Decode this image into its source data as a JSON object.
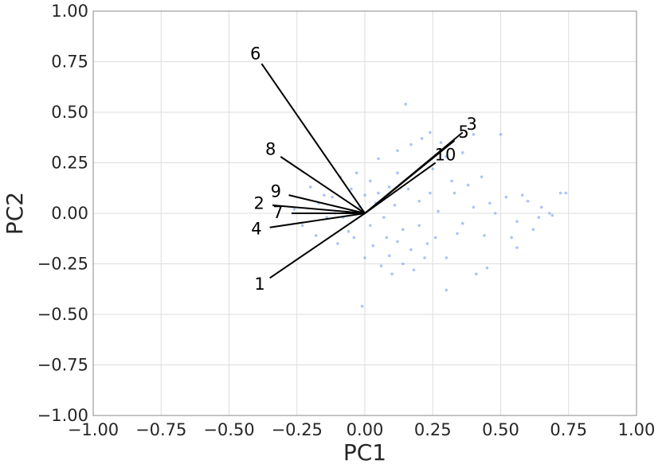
{
  "chart_data": {
    "type": "scatter",
    "title": "",
    "xlabel": "PC1",
    "ylabel": "PC2",
    "xlim": [
      -1.0,
      1.0
    ],
    "ylim": [
      -1.0,
      1.0
    ],
    "xticks": [
      -1.0,
      -0.75,
      -0.5,
      -0.25,
      0.0,
      0.25,
      0.5,
      0.75,
      1.0
    ],
    "yticks": [
      -1.0,
      -0.75,
      -0.5,
      -0.25,
      0.0,
      0.25,
      0.5,
      0.75,
      1.0
    ],
    "xtick_labels": [
      "−1.00",
      "−0.75",
      "−0.50",
      "−0.25",
      "0.00",
      "0.25",
      "0.50",
      "0.75",
      "1.00"
    ],
    "ytick_labels": [
      "−1.00",
      "−0.75",
      "−0.50",
      "−0.25",
      "0.00",
      "0.25",
      "0.50",
      "0.75",
      "1.00"
    ],
    "grid": true,
    "colors": {
      "points": "#6495ED",
      "vectors": "#000000",
      "grid": "#dddddd",
      "frame": "#888888"
    },
    "loadings": [
      {
        "label": "1",
        "x": -0.35,
        "y": -0.32
      },
      {
        "label": "2",
        "x": -0.34,
        "y": 0.04
      },
      {
        "label": "3",
        "x": 0.36,
        "y": 0.4
      },
      {
        "label": "4",
        "x": -0.35,
        "y": -0.07
      },
      {
        "label": "5",
        "x": 0.33,
        "y": 0.36
      },
      {
        "label": "6",
        "x": -0.38,
        "y": 0.74
      },
      {
        "label": "7",
        "x": -0.27,
        "y": 0.0
      },
      {
        "label": "8",
        "x": -0.31,
        "y": 0.28
      },
      {
        "label": "9",
        "x": -0.28,
        "y": 0.09
      },
      {
        "label": "10",
        "x": 0.26,
        "y": 0.25
      }
    ],
    "points": [
      [
        -0.17,
        0.05
      ],
      [
        -0.12,
        0.08
      ],
      [
        -0.08,
        -0.02
      ],
      [
        -0.05,
        0.12
      ],
      [
        -0.02,
        0.03
      ],
      [
        0.02,
        -0.06
      ],
      [
        0.05,
        0.1
      ],
      [
        0.08,
        -0.12
      ],
      [
        0.11,
        0.04
      ],
      [
        0.14,
        -0.08
      ],
      [
        0.17,
        -0.18
      ],
      [
        0.2,
        0.06
      ],
      [
        0.23,
        -0.15
      ],
      [
        0.27,
        0.01
      ],
      [
        0.3,
        -0.22
      ],
      [
        0.33,
        0.1
      ],
      [
        0.36,
        -0.05
      ],
      [
        0.4,
        0.03
      ],
      [
        0.44,
        -0.11
      ],
      [
        0.48,
        0.0
      ],
      [
        0.52,
        0.08
      ],
      [
        0.56,
        -0.04
      ],
      [
        0.6,
        0.06
      ],
      [
        0.64,
        -0.02
      ],
      [
        0.68,
        0.0
      ],
      [
        0.72,
        0.1
      ],
      [
        0.74,
        0.1
      ],
      [
        0.69,
        -0.01
      ],
      [
        0.65,
        0.03
      ],
      [
        0.58,
        0.09
      ],
      [
        0.15,
        0.54
      ],
      [
        0.17,
        0.34
      ],
      [
        0.28,
        0.35
      ],
      [
        0.4,
        0.39
      ],
      [
        0.5,
        0.39
      ],
      [
        0.21,
        0.37
      ],
      [
        0.24,
        0.4
      ],
      [
        0.36,
        0.3
      ],
      [
        0.3,
        0.28
      ],
      [
        0.12,
        0.31
      ],
      [
        -0.01,
        -0.46
      ],
      [
        0.3,
        -0.38
      ],
      [
        0.41,
        -0.3
      ],
      [
        0.45,
        -0.27
      ],
      [
        0.56,
        -0.17
      ],
      [
        0.25,
        0.22
      ],
      [
        0.32,
        0.16
      ],
      [
        0.12,
        0.2
      ],
      [
        0.05,
        0.27
      ],
      [
        -0.03,
        0.2
      ],
      [
        -0.2,
        0.13
      ],
      [
        -0.23,
        -0.06
      ],
      [
        -0.18,
        -0.11
      ],
      [
        -0.1,
        -0.15
      ],
      [
        -0.06,
        -0.09
      ],
      [
        0.0,
        -0.22
      ],
      [
        0.06,
        -0.26
      ],
      [
        0.09,
        -0.21
      ],
      [
        0.14,
        -0.25
      ],
      [
        0.18,
        -0.28
      ],
      [
        0.22,
        -0.22
      ],
      [
        0.26,
        -0.12
      ],
      [
        0.04,
        0.05
      ],
      [
        -0.14,
        -0.02
      ],
      [
        -0.26,
        0.02
      ],
      [
        0.2,
        -0.06
      ],
      [
        0.09,
        0.13
      ],
      [
        0.02,
        0.16
      ],
      [
        -0.09,
        0.18
      ],
      [
        0.34,
        -0.1
      ],
      [
        0.12,
        -0.14
      ],
      [
        0.07,
        -0.02
      ],
      [
        -0.04,
        -0.12
      ],
      [
        0.16,
        0.12
      ],
      [
        0.24,
        0.1
      ],
      [
        0.38,
        0.14
      ],
      [
        0.46,
        0.05
      ],
      [
        0.54,
        -0.12
      ],
      [
        0.62,
        -0.08
      ],
      [
        0.43,
        0.18
      ],
      [
        -0.11,
        0.0
      ],
      [
        -0.15,
        0.09
      ],
      [
        0.0,
        0.09
      ],
      [
        0.1,
        -0.3
      ],
      [
        0.03,
        -0.16
      ]
    ]
  }
}
